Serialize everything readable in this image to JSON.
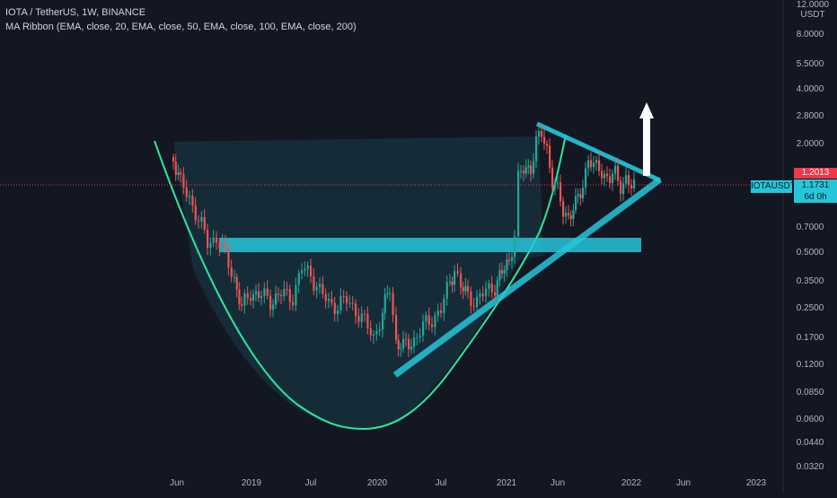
{
  "header": {
    "symbol_line": "IOTA / TetherUS, 1W, BINANCE",
    "indicator_line": "MA Ribbon (EMA, close, 20, EMA, close, 50, EMA, close, 100, EMA, close, 200)"
  },
  "price_axis": {
    "unit_top": "12.0000",
    "unit": "USDT",
    "labels": [
      "8.0000",
      "5.5000",
      "4.0000",
      "2.8000",
      "2.0000",
      "0.7000",
      "0.5000",
      "0.3500",
      "0.2500",
      "0.1700",
      "0.1200",
      "0.0850",
      "0.0600",
      "0.0440",
      "0.0320"
    ]
  },
  "time_axis": {
    "labels": [
      "Jun",
      "2019",
      "Jul",
      "2020",
      "Jul",
      "2021",
      "Jun",
      "2022",
      "Jun",
      "2023"
    ]
  },
  "badges": {
    "current_price": "1.2013",
    "symbol": "IOTAUSDT",
    "last_price": "1.1731",
    "countdown": "6d 0h"
  },
  "colors": {
    "background": "#131722",
    "up_candle": "#26a69a",
    "down_candle": "#ef5350",
    "drawing": "#26c6da",
    "cup_curve": "#2ee59d",
    "price_line": "#f23645",
    "arrow": "#ffffff"
  }
}
